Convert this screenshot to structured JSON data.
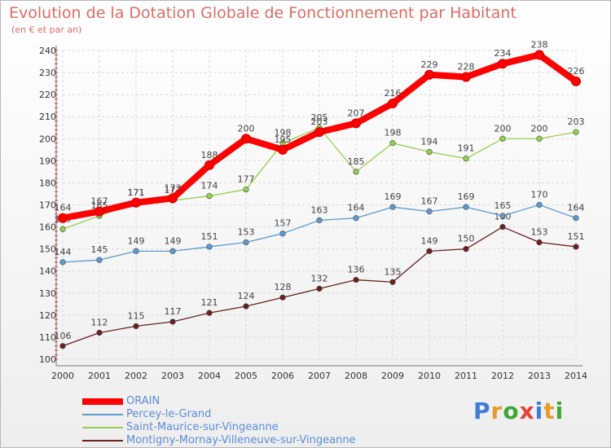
{
  "chart_data": {
    "type": "line",
    "title": "Evolution de la Dotation Globale de Fonctionnement par Habitant",
    "subtitle": "(en € et par an)",
    "x": [
      "2000",
      "2001",
      "2002",
      "2003",
      "2004",
      "2005",
      "2006",
      "2007",
      "2008",
      "2009",
      "2010",
      "2011",
      "2012",
      "2013",
      "2014"
    ],
    "ylim": [
      100,
      240
    ],
    "yticks": [
      "100",
      "110",
      "120",
      "130",
      "140",
      "150",
      "160",
      "170",
      "180",
      "190",
      "200",
      "210",
      "220",
      "230",
      "240"
    ],
    "grid": true,
    "legend_position": "bottom-left",
    "series": [
      {
        "name": "ORAIN",
        "color": "#ff0000",
        "values": [
          164,
          167,
          171,
          173,
          188,
          200,
          195,
          203,
          207,
          216,
          229,
          228,
          234,
          238,
          226
        ]
      },
      {
        "name": "Percey-le-Grand",
        "color": "#5c9bd1",
        "values": [
          144,
          145,
          149,
          149,
          151,
          153,
          157,
          163,
          164,
          169,
          167,
          169,
          165,
          170,
          164
        ]
      },
      {
        "name": "Saint-Maurice-sur-Vingeanne",
        "color": "#92d050",
        "values": [
          159,
          165,
          171,
          172,
          174,
          177,
          198,
          205,
          185,
          198,
          194,
          191,
          200,
          200,
          203
        ]
      },
      {
        "name": "Montigny-Mornay-Villeneuve-sur-Vingeanne",
        "color": "#6b1f1f",
        "values": [
          106,
          112,
          115,
          117,
          121,
          124,
          128,
          132,
          136,
          135,
          149,
          150,
          160,
          153,
          151
        ]
      }
    ]
  },
  "logo": {
    "letters": [
      "P",
      "r",
      "o",
      "x",
      "i",
      "t",
      "i"
    ],
    "colors": [
      "#3a7fd5",
      "#e69b2a",
      "#3fa535",
      "#e0443a",
      "#3a7fd5",
      "#e69b2a",
      "#3fa535"
    ]
  }
}
